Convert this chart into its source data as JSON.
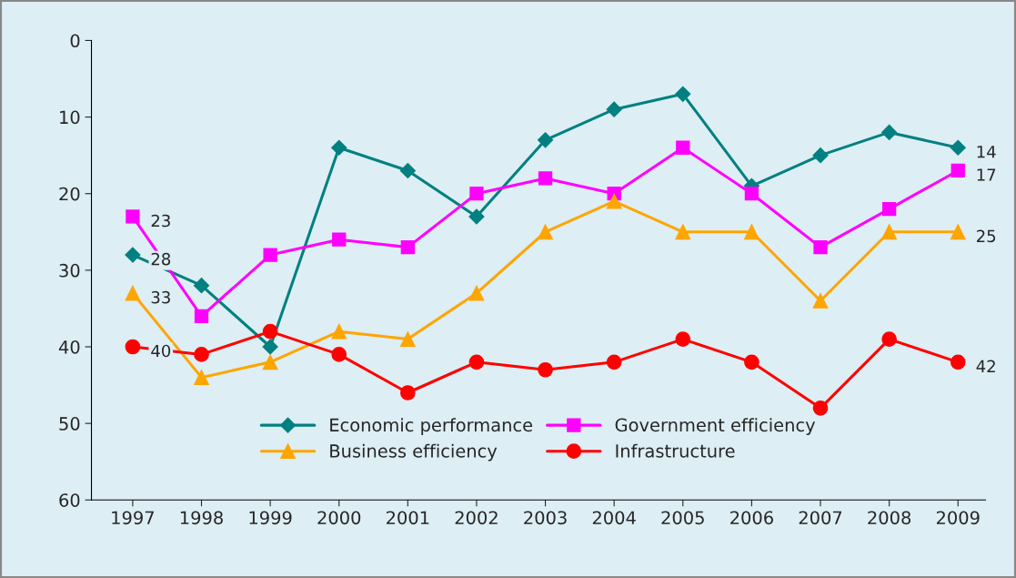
{
  "chart_data": {
    "type": "line",
    "categories": [
      "1997",
      "1998",
      "1999",
      "2000",
      "2001",
      "2002",
      "2003",
      "2004",
      "2005",
      "2006",
      "2007",
      "2008",
      "2009"
    ],
    "ylim": [
      60,
      0
    ],
    "yticks": [
      0,
      10,
      20,
      30,
      40,
      50,
      60
    ],
    "grid": false,
    "legend": "bottom",
    "series": [
      {
        "name": "Economic performance",
        "color": "#008080",
        "marker": "diamond",
        "values": [
          28,
          32,
          40,
          14,
          17,
          23,
          13,
          9,
          7,
          19,
          15,
          12,
          14
        ],
        "value_labels": [
          "28",
          null,
          null,
          null,
          null,
          null,
          null,
          null,
          null,
          null,
          null,
          null,
          "14"
        ]
      },
      {
        "name": "Government efficiency",
        "color": "#ff00ff",
        "marker": "square",
        "values": [
          23,
          36,
          28,
          26,
          27,
          20,
          18,
          20,
          14,
          20,
          27,
          22,
          17
        ],
        "value_labels": [
          "23",
          null,
          null,
          null,
          null,
          null,
          null,
          null,
          null,
          null,
          null,
          null,
          "17"
        ]
      },
      {
        "name": "Business efficiency",
        "color": "#ffa500",
        "marker": "triangle",
        "values": [
          33,
          44,
          42,
          38,
          39,
          33,
          25,
          21,
          25,
          25,
          34,
          25,
          25
        ],
        "value_labels": [
          "33",
          null,
          null,
          null,
          null,
          null,
          null,
          null,
          null,
          null,
          null,
          null,
          "25"
        ]
      },
      {
        "name": "Infrastructure",
        "color": "#ff0000",
        "marker": "circle",
        "values": [
          40,
          41,
          38,
          41,
          46,
          42,
          43,
          42,
          39,
          42,
          48,
          39,
          42
        ],
        "value_labels": [
          "40",
          null,
          null,
          null,
          null,
          null,
          null,
          null,
          null,
          null,
          null,
          null,
          "42"
        ]
      }
    ]
  }
}
